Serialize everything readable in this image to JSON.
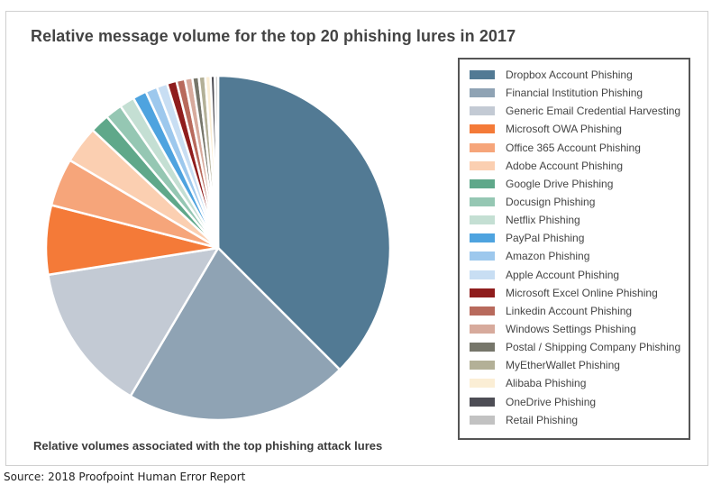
{
  "chart_data": {
    "type": "pie",
    "title": "Relative message volume for the top 20 phishing lures in 2017",
    "subtitle": "Relative volumes associated with the top phishing attack lures",
    "legend_position": "right",
    "slices": [
      {
        "label": "Dropbox Account Phishing",
        "value": 37.5,
        "color": "#527a94"
      },
      {
        "label": "Financial Institution Phishing",
        "value": 21.0,
        "color": "#8fa3b4"
      },
      {
        "label": "Generic Email Credential Harvesting",
        "value": 14.0,
        "color": "#c3cad4"
      },
      {
        "label": "Microsoft OWA Phishing",
        "value": 6.5,
        "color": "#f47a38"
      },
      {
        "label": "Office 365 Account Phishing",
        "value": 4.5,
        "color": "#f6a57a"
      },
      {
        "label": "Adobe Account Phishing",
        "value": 3.5,
        "color": "#fbcfb1"
      },
      {
        "label": "Google Drive Phishing",
        "value": 1.8,
        "color": "#5fa88a"
      },
      {
        "label": "Docusign Phishing",
        "value": 1.6,
        "color": "#95c7b3"
      },
      {
        "label": "Netflix Phishing",
        "value": 1.4,
        "color": "#c4dfd3"
      },
      {
        "label": "PayPal Phishing",
        "value": 1.3,
        "color": "#4ea3df"
      },
      {
        "label": "Amazon Phishing",
        "value": 1.1,
        "color": "#9dc8ed"
      },
      {
        "label": "Apple Account Phishing",
        "value": 1.0,
        "color": "#c8def3"
      },
      {
        "label": "Microsoft Excel Online Phishing",
        "value": 0.9,
        "color": "#8f1d1d"
      },
      {
        "label": "Linkedin Account Phishing",
        "value": 0.8,
        "color": "#b86a5c"
      },
      {
        "label": "Windows Settings Phishing",
        "value": 0.7,
        "color": "#d7aa9c"
      },
      {
        "label": "Postal / Shipping Company Phishing",
        "value": 0.6,
        "color": "#76766a"
      },
      {
        "label": "MyEtherWallet Phishing",
        "value": 0.6,
        "color": "#b3b097"
      },
      {
        "label": "Alibaba Phishing",
        "value": 0.5,
        "color": "#fbeed5"
      },
      {
        "label": "OneDrive Phishing",
        "value": 0.4,
        "color": "#4d4d55"
      },
      {
        "label": "Retail Phishing",
        "value": 0.3,
        "color": "#c2c2c2"
      }
    ]
  },
  "source": "Source: 2018 Proofpoint Human Error Report"
}
